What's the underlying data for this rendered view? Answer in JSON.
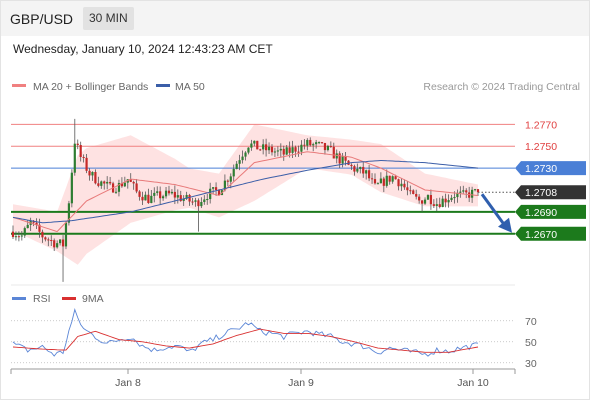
{
  "header": {
    "symbol": "GBP/USD",
    "timeframe": "30 MIN",
    "timestamp": "Wednesday, January 10, 2024 12:43:23 AM CET"
  },
  "legend": {
    "bb_label": "MA 20 + Bollinger Bands",
    "ma50_label": "MA 50",
    "copyright": "Research © 2024 Trading Central",
    "rsi_label": "RSI",
    "ma9_label": "9MA"
  },
  "colors": {
    "bb_band": "#fdd8d8",
    "ma20": "#e87a7a",
    "ma50": "#3b5ea8",
    "resistance": "#f08080",
    "pivot": "#4a7fd6",
    "support": "#1c7a1c",
    "current": "#333333",
    "arrow": "#2f5fae",
    "candle_up": "#2e7d32",
    "candle_down": "#c62828",
    "rsi": "#5b86d6",
    "rsi_ma": "#d93030"
  },
  "chart_data": [
    {
      "type": "candlestick",
      "title": "GBP/USD 30 MIN",
      "x_tick_labels": [
        "Jan 8",
        "Jan 9",
        "Jan 10"
      ],
      "ylim": [
        1.2625,
        1.2795
      ],
      "legend": [
        "MA 20 + Bollinger Bands",
        "MA 50"
      ],
      "levels": [
        {
          "value": 1.277,
          "label": "1.2770",
          "kind": "resistance"
        },
        {
          "value": 1.275,
          "label": "1.2750",
          "kind": "resistance"
        },
        {
          "value": 1.273,
          "label": "1.2730",
          "kind": "pivot"
        },
        {
          "value": 1.2708,
          "label": "1.2708",
          "kind": "current"
        },
        {
          "value": 1.269,
          "label": "1.2690",
          "kind": "support"
        },
        {
          "value": 1.267,
          "label": "1.2670",
          "kind": "support"
        }
      ],
      "price_anchors": [
        [
          0,
          1.2672
        ],
        [
          3,
          1.2668
        ],
        [
          6,
          1.268
        ],
        [
          10,
          1.2668
        ],
        [
          14,
          1.2662
        ],
        [
          17,
          1.266
        ],
        [
          19,
          1.27
        ],
        [
          21,
          1.2755
        ],
        [
          23,
          1.274
        ],
        [
          26,
          1.2725
        ],
        [
          29,
          1.2718
        ],
        [
          33,
          1.2712
        ],
        [
          36,
          1.2714
        ],
        [
          39,
          1.272
        ],
        [
          42,
          1.2708
        ],
        [
          46,
          1.2702
        ],
        [
          50,
          1.2705
        ],
        [
          54,
          1.2706
        ],
        [
          58,
          1.2702
        ],
        [
          62,
          1.2698
        ],
        [
          66,
          1.2706
        ],
        [
          70,
          1.271
        ],
        [
          74,
          1.2725
        ],
        [
          77,
          1.274
        ],
        [
          80,
          1.2752
        ],
        [
          84,
          1.2748
        ],
        [
          88,
          1.2746
        ],
        [
          92,
          1.2743
        ],
        [
          96,
          1.2748
        ],
        [
          100,
          1.2752
        ],
        [
          104,
          1.275
        ],
        [
          108,
          1.2745
        ],
        [
          111,
          1.2738
        ],
        [
          114,
          1.2732
        ],
        [
          117,
          1.2728
        ],
        [
          120,
          1.2725
        ],
        [
          123,
          1.2712
        ],
        [
          126,
          1.2718
        ],
        [
          129,
          1.2722
        ],
        [
          132,
          1.2716
        ],
        [
          135,
          1.2705
        ],
        [
          138,
          1.27
        ],
        [
          141,
          1.2704
        ],
        [
          144,
          1.2698
        ],
        [
          147,
          1.2702
        ],
        [
          150,
          1.2706
        ],
        [
          153,
          1.2705
        ],
        [
          156,
          1.2707
        ],
        [
          158,
          1.2708
        ]
      ],
      "bb_mid_anchors": [
        [
          0,
          1.2685
        ],
        [
          15,
          1.2672
        ],
        [
          25,
          1.27
        ],
        [
          40,
          1.272
        ],
        [
          55,
          1.2715
        ],
        [
          70,
          1.2705
        ],
        [
          82,
          1.2735
        ],
        [
          100,
          1.2745
        ],
        [
          115,
          1.274
        ],
        [
          125,
          1.273
        ],
        [
          140,
          1.271
        ],
        [
          158,
          1.2705
        ]
      ],
      "bb_width_anchors": [
        [
          0,
          0.0012
        ],
        [
          15,
          0.0018
        ],
        [
          22,
          0.005
        ],
        [
          40,
          0.004
        ],
        [
          60,
          0.0018
        ],
        [
          70,
          0.002
        ],
        [
          82,
          0.0035
        ],
        [
          100,
          0.0015
        ],
        [
          115,
          0.0016
        ],
        [
          125,
          0.0022
        ],
        [
          140,
          0.0015
        ],
        [
          158,
          0.001
        ]
      ],
      "ma50_anchors": [
        [
          0,
          1.2685
        ],
        [
          10,
          1.268
        ],
        [
          20,
          1.2682
        ],
        [
          40,
          1.269
        ],
        [
          55,
          1.27
        ],
        [
          70,
          1.271
        ],
        [
          85,
          1.272
        ],
        [
          100,
          1.2728
        ],
        [
          115,
          1.2735
        ],
        [
          125,
          1.2737
        ],
        [
          140,
          1.2735
        ],
        [
          158,
          1.273
        ]
      ],
      "forecast_arrow": {
        "from": 1.2708,
        "to": 1.267
      }
    },
    {
      "type": "line",
      "title": "RSI",
      "ylim": [
        25,
        85
      ],
      "y_tick_labels": [
        "70",
        "50",
        "30"
      ],
      "y_ticks": [
        70,
        50,
        30
      ],
      "series": [
        {
          "name": "RSI",
          "anchors": [
            [
              0,
              48
            ],
            [
              5,
              42
            ],
            [
              10,
              45
            ],
            [
              14,
              38
            ],
            [
              17,
              40
            ],
            [
              19,
              60
            ],
            [
              21,
              78
            ],
            [
              24,
              62
            ],
            [
              28,
              55
            ],
            [
              32,
              48
            ],
            [
              36,
              52
            ],
            [
              40,
              55
            ],
            [
              44,
              46
            ],
            [
              48,
              42
            ],
            [
              52,
              45
            ],
            [
              56,
              46
            ],
            [
              60,
              40
            ],
            [
              64,
              48
            ],
            [
              68,
              52
            ],
            [
              72,
              58
            ],
            [
              76,
              62
            ],
            [
              80,
              68
            ],
            [
              84,
              60
            ],
            [
              88,
              58
            ],
            [
              92,
              55
            ],
            [
              96,
              58
            ],
            [
              100,
              60
            ],
            [
              104,
              57
            ],
            [
              108,
              55
            ],
            [
              112,
              50
            ],
            [
              116,
              48
            ],
            [
              120,
              45
            ],
            [
              124,
              40
            ],
            [
              128,
              44
            ],
            [
              132,
              42
            ],
            [
              136,
              40
            ],
            [
              140,
              38
            ],
            [
              144,
              42
            ],
            [
              148,
              41
            ],
            [
              152,
              44
            ],
            [
              156,
              46
            ],
            [
              158,
              47
            ]
          ]
        },
        {
          "name": "9MA",
          "anchors": [
            [
              0,
              45
            ],
            [
              10,
              43
            ],
            [
              18,
              42
            ],
            [
              22,
              55
            ],
            [
              28,
              60
            ],
            [
              36,
              52
            ],
            [
              44,
              50
            ],
            [
              52,
              46
            ],
            [
              60,
              44
            ],
            [
              68,
              48
            ],
            [
              76,
              56
            ],
            [
              84,
              62
            ],
            [
              92,
              58
            ],
            [
              100,
              58
            ],
            [
              108,
              55
            ],
            [
              116,
              50
            ],
            [
              124,
              44
            ],
            [
              132,
              42
            ],
            [
              140,
              40
            ],
            [
              148,
              40
            ],
            [
              158,
              45
            ]
          ]
        }
      ]
    }
  ]
}
